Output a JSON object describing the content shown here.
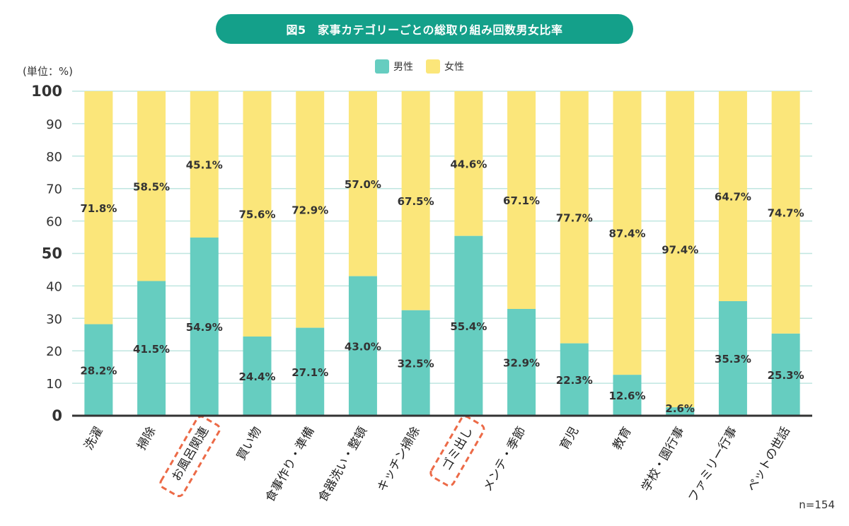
{
  "chart_data": {
    "type": "bar",
    "stacked": true,
    "title": "図5　家事カテゴリーごとの総取り組み回数男女比率",
    "unit_label": "(単位：%)",
    "sample_note": "n=154",
    "ylim": [
      0,
      100
    ],
    "yticks": [
      0,
      10,
      20,
      30,
      40,
      50,
      60,
      70,
      80,
      90,
      100
    ],
    "ytick_labels": [
      "0",
      "10",
      "20",
      "30",
      "40",
      "50",
      "60",
      "70",
      "80",
      "90",
      "100"
    ],
    "bold_ticks": [
      0,
      50,
      100
    ],
    "categories": [
      "洗濯",
      "掃除",
      "お風呂関連",
      "買い物",
      "食事作り・準備",
      "食器洗い・整頓",
      "キッチン掃除",
      "ゴミ出し",
      "メンテ・季節",
      "育児",
      "教育",
      "学校・園行事",
      "ファミリー行事",
      "ペットの世話"
    ],
    "highlighted_categories": [
      "お風呂関連",
      "ゴミ出し"
    ],
    "series": [
      {
        "name": "男性",
        "color": "#66cdc0",
        "values": [
          28.2,
          41.5,
          54.9,
          24.4,
          27.1,
          43.0,
          32.5,
          55.4,
          32.9,
          22.3,
          12.6,
          2.6,
          35.3,
          25.3
        ],
        "labels": [
          "28.2%",
          "41.5%",
          "54.9%",
          "24.4%",
          "27.1%",
          "43.0%",
          "32.5%",
          "55.4%",
          "32.9%",
          "22.3%",
          "12.6%",
          "2.6%",
          "35.3%",
          "25.3%"
        ]
      },
      {
        "name": "女性",
        "color": "#fbe67a",
        "values": [
          71.8,
          58.5,
          45.1,
          75.6,
          72.9,
          57.0,
          67.5,
          44.6,
          67.1,
          77.7,
          87.4,
          97.4,
          64.7,
          74.7
        ],
        "labels": [
          "71.8%",
          "58.5%",
          "45.1%",
          "75.6%",
          "72.9%",
          "57.0%",
          "67.5%",
          "44.6%",
          "67.1%",
          "77.7%",
          "87.4%",
          "97.4%",
          "64.7%",
          "74.7%"
        ]
      }
    ],
    "legend": [
      "男性",
      "女性"
    ],
    "legend_position": "top-center",
    "grid": true,
    "colors": {
      "title_bg": "#14a08a",
      "grid": "#bfe6e0",
      "axis": "#333333",
      "highlight": "#ec6a47"
    }
  }
}
